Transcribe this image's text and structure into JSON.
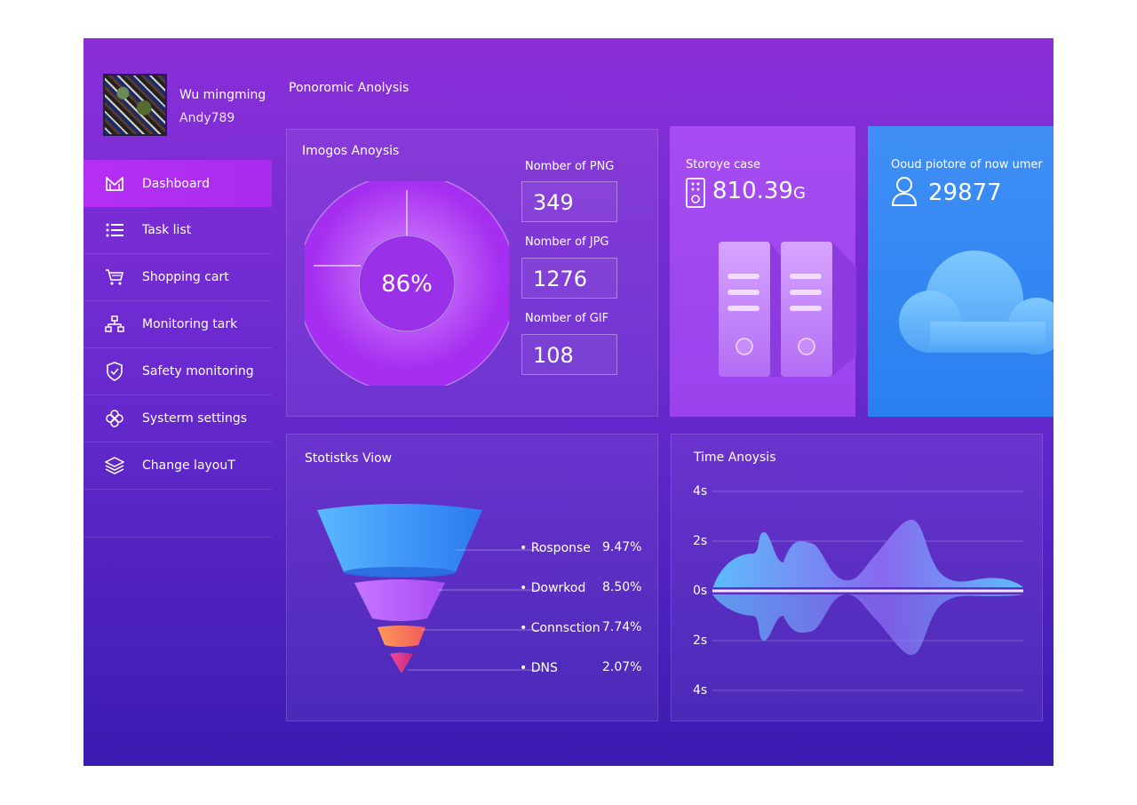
{
  "user": {
    "name": "Wu mingming",
    "id": "Andy789"
  },
  "nav": [
    {
      "label": "Dashboard",
      "icon": "m-logo-icon",
      "active": true
    },
    {
      "label": "Task list",
      "icon": "list-icon"
    },
    {
      "label": "Shopping cart",
      "icon": "cart-icon"
    },
    {
      "label": "Monitoring tark",
      "icon": "hierarchy-icon"
    },
    {
      "label": "Safety monitoring",
      "icon": "shield-icon"
    },
    {
      "label": "Systerm settings",
      "icon": "settings-icon"
    },
    {
      "label": "Change layouT",
      "icon": "layers-icon"
    }
  ],
  "page_title": "Ponoromic Anolysis",
  "images": {
    "title": "Imogos Anoysis",
    "donut_percent": "86%",
    "donut_value": 0.86,
    "stats": [
      {
        "label": "Nomber of PNG",
        "value": "349"
      },
      {
        "label": "Nomber of JPG",
        "value": "1276"
      },
      {
        "label": "Nomber of GIF",
        "value": "108"
      }
    ]
  },
  "storage": {
    "title": "Storoye  case",
    "value": "810.39",
    "unit": "G"
  },
  "cloud": {
    "title": "Ooud piotore of now umer",
    "value": "29877"
  },
  "stats_view": {
    "title": "Stotistks Viow",
    "rows": [
      {
        "label": "Rosponse",
        "percent": "9.47%"
      },
      {
        "label": "Dowrkod",
        "percent": "8.50%"
      },
      {
        "label": "Connsction",
        "percent": "7.74%"
      },
      {
        "label": "DNS",
        "percent": "2.07%"
      }
    ]
  },
  "time": {
    "title": "Time Anoysis",
    "y_labels": [
      "4s",
      "2s",
      "0s",
      "2s",
      "4s"
    ]
  },
  "colors": {
    "accent": "#b52ff2",
    "cloud_panel": "#2f86f2",
    "storage_panel": "#a24cf0"
  }
}
